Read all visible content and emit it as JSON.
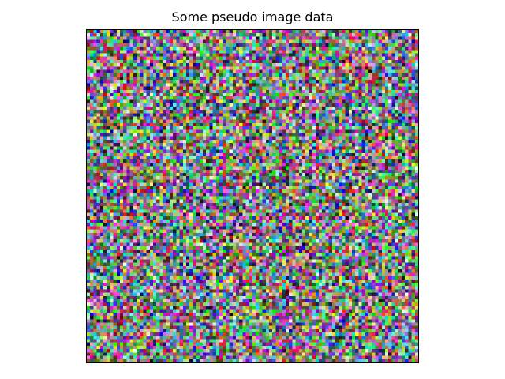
{
  "chart_data": {
    "type": "heatmap",
    "title": "Some pseudo image data",
    "xlabel": "",
    "ylabel": "",
    "axes_visible": false,
    "grid": false,
    "legend": "none",
    "image": {
      "color_mode": "RGB",
      "rows": 100,
      "cols": 100,
      "channel_range": [
        0,
        1
      ],
      "distribution": "uniform random",
      "interpolation": "nearest"
    }
  }
}
